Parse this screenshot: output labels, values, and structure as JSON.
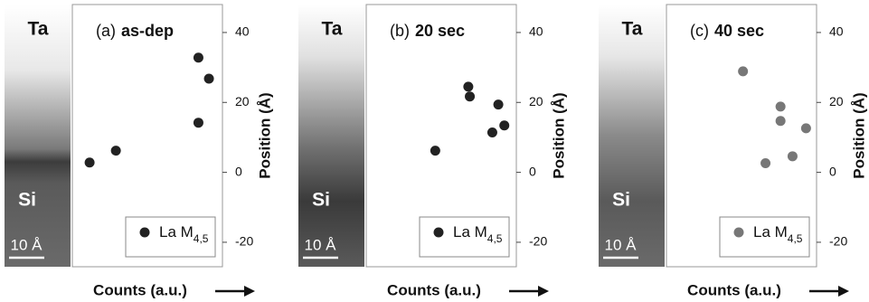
{
  "chart_data": [
    {
      "type": "scatter",
      "panel_label": "(a)",
      "title": "as-dep",
      "strip_labels": {
        "top": "Ta",
        "bottom": "Si",
        "scale": "10 Å"
      },
      "xlabel": "Counts (a.u.)",
      "ylabel": "Position (Å)",
      "xlim": [
        0,
        100
      ],
      "ylim": [
        -27,
        48
      ],
      "yticks": [
        -20,
        0,
        20,
        40
      ],
      "series": [
        {
          "name": "La M",
          "name_sub": "4,5",
          "color": "#222222",
          "x": [
            11.5,
            29,
            84,
            84,
            91
          ],
          "values": [
            2.8,
            6.2,
            14.2,
            32.8,
            26.8
          ]
        }
      ]
    },
    {
      "type": "scatter",
      "panel_label": "(b)",
      "title": "20 sec",
      "strip_labels": {
        "top": "Ta",
        "bottom": "Si",
        "scale": "10 Å"
      },
      "xlabel": "Counts (a.u.)",
      "ylabel": "Position (Å)",
      "xlim": [
        0,
        100
      ],
      "ylim": [
        -27,
        48
      ],
      "yticks": [
        -20,
        0,
        20,
        40
      ],
      "series": [
        {
          "name": "La M",
          "name_sub": "4,5",
          "color": "#222222",
          "x": [
            46,
            68,
            69,
            84,
            88,
            92
          ],
          "values": [
            6.2,
            24.5,
            21.7,
            11.4,
            19.4,
            13.4
          ]
        }
      ]
    },
    {
      "type": "scatter",
      "panel_label": "(c)",
      "title": "40 sec",
      "strip_labels": {
        "top": "Ta",
        "bottom": "Si",
        "scale": "10 Å"
      },
      "xlabel": "Counts (a.u.)",
      "ylabel": "Position (Å)",
      "xlim": [
        0,
        100
      ],
      "ylim": [
        -27,
        48
      ],
      "yticks": [
        -20,
        0,
        20,
        40
      ],
      "series": [
        {
          "name": "La M",
          "name_sub": "4,5",
          "color": "#777777",
          "x": [
            51,
            76,
            76,
            66,
            84,
            93
          ],
          "values": [
            28.9,
            18.8,
            14.7,
            2.6,
            4.6,
            12.6
          ]
        }
      ]
    }
  ]
}
